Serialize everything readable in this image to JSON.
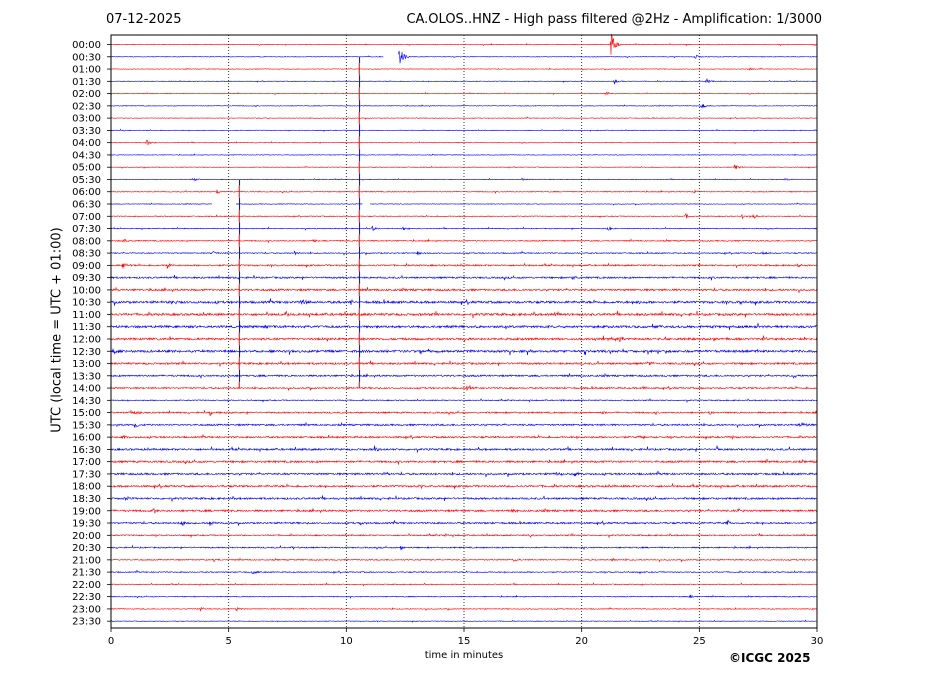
{
  "header": {
    "date": "07-12-2025",
    "title": "CA.OLOS..HNZ - High pass filtered @2Hz - Amplification: 1/3000"
  },
  "copyright": "©ICGC 2025",
  "colors": {
    "odd_row": "#ff0000",
    "even_row": "#0000ff",
    "grid": "#000000"
  },
  "chart_data": {
    "type": "line",
    "title": "CA.OLOS..HNZ - High pass filtered @2Hz - Amplification: 1/3000",
    "xlabel": "time in minutes",
    "ylabel": "UTC (local time = UTC + 01:00)",
    "xlim": [
      0,
      30
    ],
    "x_ticks": [
      0,
      5,
      10,
      15,
      20,
      25,
      30
    ],
    "grid": {
      "vertical_dotted": [
        5,
        10,
        15,
        20,
        25
      ]
    },
    "rows": [
      "00:00",
      "00:30",
      "01:00",
      "01:30",
      "02:00",
      "02:30",
      "03:00",
      "03:30",
      "04:00",
      "04:30",
      "05:00",
      "05:30",
      "06:00",
      "06:30",
      "07:00",
      "07:30",
      "08:00",
      "08:30",
      "09:00",
      "09:30",
      "10:00",
      "10:30",
      "11:00",
      "11:30",
      "12:00",
      "12:30",
      "13:00",
      "13:30",
      "14:00",
      "14:30",
      "15:00",
      "15:30",
      "16:00",
      "16:30",
      "17:00",
      "17:30",
      "18:00",
      "18:30",
      "19:00",
      "19:30",
      "20:00",
      "20:30",
      "21:00",
      "21:30",
      "22:00",
      "22:30",
      "23:00",
      "23:30"
    ],
    "row_colors": [
      "red",
      "blue"
    ],
    "row_noise": [
      0.3,
      0.3,
      0.3,
      0.3,
      0.3,
      0.3,
      0.3,
      0.3,
      0.3,
      0.3,
      0.3,
      0.3,
      0.4,
      0.3,
      0.4,
      0.4,
      0.5,
      0.5,
      0.7,
      0.8,
      0.9,
      1.1,
      1.1,
      1.1,
      1.0,
      1.1,
      0.9,
      0.8,
      0.7,
      0.5,
      0.7,
      0.8,
      0.8,
      0.9,
      0.9,
      0.9,
      0.9,
      0.9,
      0.9,
      0.8,
      0.6,
      0.6,
      0.5,
      0.5,
      0.4,
      0.4,
      0.4,
      0.3
    ],
    "events": [
      {
        "row": 0,
        "t": 21.25,
        "amp": 3.0
      },
      {
        "row": 1,
        "t": 12.25,
        "amp": 2.6
      },
      {
        "row": 1,
        "t": 24.8,
        "amp": 0.5
      },
      {
        "row": 2,
        "t": 27.1,
        "amp": 0.4
      },
      {
        "row": 3,
        "t": 21.4,
        "amp": 0.7
      },
      {
        "row": 3,
        "t": 25.3,
        "amp": 0.6
      },
      {
        "row": 4,
        "t": 21.0,
        "amp": 0.5
      },
      {
        "row": 5,
        "t": 25.1,
        "amp": 0.7
      },
      {
        "row": 7,
        "t": 0.4,
        "amp": 0.3
      },
      {
        "row": 8,
        "t": 1.5,
        "amp": 0.8
      },
      {
        "row": 10,
        "t": 26.5,
        "amp": 0.7
      },
      {
        "row": 11,
        "t": 3.5,
        "amp": 0.5
      },
      {
        "row": 11,
        "t": 17.4,
        "amp": 0.5
      },
      {
        "row": 11,
        "t": 28.6,
        "amp": 0.4
      },
      {
        "row": 12,
        "t": 4.5,
        "amp": 0.5
      },
      {
        "row": 12,
        "t": 24.8,
        "amp": 0.4
      },
      {
        "row": 14,
        "t": 24.4,
        "amp": 0.6
      },
      {
        "row": 14,
        "t": 26.8,
        "amp": 0.5
      },
      {
        "row": 14,
        "t": 27.3,
        "amp": 0.5
      },
      {
        "row": 15,
        "t": 11.1,
        "amp": 0.6
      },
      {
        "row": 15,
        "t": 12.4,
        "amp": 0.5
      },
      {
        "row": 15,
        "t": 21.1,
        "amp": 0.5
      },
      {
        "row": 16,
        "t": 0.5,
        "amp": 0.5
      },
      {
        "row": 16,
        "t": 8.6,
        "amp": 0.4
      },
      {
        "row": 17,
        "t": 4.3,
        "amp": 0.5
      },
      {
        "row": 17,
        "t": 7.8,
        "amp": 0.5
      },
      {
        "row": 17,
        "t": 13.0,
        "amp": 0.5
      },
      {
        "row": 17,
        "t": 27.7,
        "amp": 0.6
      },
      {
        "row": 18,
        "t": 0.5,
        "amp": 0.9
      },
      {
        "row": 18,
        "t": 2.4,
        "amp": 0.6
      },
      {
        "row": 18,
        "t": 29.2,
        "amp": 0.5
      },
      {
        "row": 19,
        "t": 19.6,
        "amp": 0.5
      },
      {
        "row": 20,
        "t": 0.2,
        "amp": 0.5
      },
      {
        "row": 21,
        "t": 2.6,
        "amp": 0.7
      },
      {
        "row": 21,
        "t": 8.1,
        "amp": 0.7
      },
      {
        "row": 21,
        "t": 10.2,
        "amp": 0.7
      },
      {
        "row": 21,
        "t": 22.3,
        "amp": 0.7
      },
      {
        "row": 21,
        "t": 26.7,
        "amp": 0.6
      },
      {
        "row": 22,
        "t": 7.4,
        "amp": 0.6
      },
      {
        "row": 22,
        "t": 18.8,
        "amp": 0.6
      },
      {
        "row": 22,
        "t": 30.0,
        "amp": 0.6
      },
      {
        "row": 23,
        "t": 6.5,
        "amp": 0.5
      },
      {
        "row": 24,
        "t": 15.0,
        "amp": 0.6
      },
      {
        "row": 24,
        "t": 21.6,
        "amp": 0.5
      },
      {
        "row": 24,
        "t": 27.7,
        "amp": 0.5
      },
      {
        "row": 25,
        "t": 0.1,
        "amp": 0.7
      },
      {
        "row": 25,
        "t": 17.7,
        "amp": 0.6
      },
      {
        "row": 25,
        "t": 30.0,
        "amp": 0.7
      },
      {
        "row": 26,
        "t": 22.8,
        "amp": 0.5
      },
      {
        "row": 27,
        "t": 29.0,
        "amp": 0.4
      },
      {
        "row": 28,
        "t": 15.1,
        "amp": 0.6
      },
      {
        "row": 28,
        "t": 22.6,
        "amp": 0.4
      },
      {
        "row": 29,
        "t": 19.1,
        "amp": 0.4
      },
      {
        "row": 30,
        "t": 1.0,
        "amp": 0.7
      },
      {
        "row": 30,
        "t": 4.2,
        "amp": 0.6
      },
      {
        "row": 30,
        "t": 20.9,
        "amp": 0.5
      },
      {
        "row": 30,
        "t": 25.4,
        "amp": 0.6
      },
      {
        "row": 31,
        "t": 1.0,
        "amp": 0.5
      },
      {
        "row": 31,
        "t": 29.3,
        "amp": 0.7
      },
      {
        "row": 32,
        "t": 0.5,
        "amp": 0.5
      },
      {
        "row": 32,
        "t": 22.4,
        "amp": 0.5
      },
      {
        "row": 32,
        "t": 26.4,
        "amp": 0.5
      },
      {
        "row": 33,
        "t": 11.2,
        "amp": 0.8
      },
      {
        "row": 33,
        "t": 25.7,
        "amp": 0.5
      },
      {
        "row": 35,
        "t": 11.6,
        "amp": 0.5
      },
      {
        "row": 35,
        "t": 18.8,
        "amp": 0.5
      },
      {
        "row": 35,
        "t": 19.7,
        "amp": 0.5
      },
      {
        "row": 36,
        "t": 12.9,
        "amp": 0.5
      },
      {
        "row": 37,
        "t": 0.6,
        "amp": 0.6
      },
      {
        "row": 37,
        "t": 9.6,
        "amp": 0.5
      },
      {
        "row": 38,
        "t": 1.8,
        "amp": 0.5
      },
      {
        "row": 38,
        "t": 17.0,
        "amp": 0.5
      },
      {
        "row": 38,
        "t": 26.6,
        "amp": 0.6
      },
      {
        "row": 39,
        "t": 3.0,
        "amp": 0.9
      },
      {
        "row": 39,
        "t": 4.2,
        "amp": 0.6
      },
      {
        "row": 39,
        "t": 10.6,
        "amp": 0.5
      },
      {
        "row": 39,
        "t": 26.2,
        "amp": 0.6
      },
      {
        "row": 40,
        "t": 14.2,
        "amp": 0.5
      },
      {
        "row": 40,
        "t": 17.8,
        "amp": 0.5
      },
      {
        "row": 41,
        "t": 7.7,
        "amp": 0.5
      },
      {
        "row": 41,
        "t": 12.3,
        "amp": 0.5
      },
      {
        "row": 42,
        "t": 4.3,
        "amp": 0.6
      },
      {
        "row": 42,
        "t": 17.1,
        "amp": 0.5
      },
      {
        "row": 42,
        "t": 21.3,
        "amp": 0.6
      },
      {
        "row": 43,
        "t": 6.0,
        "amp": 0.5
      },
      {
        "row": 45,
        "t": 24.6,
        "amp": 0.5
      },
      {
        "row": 46,
        "t": 3.8,
        "amp": 0.5
      },
      {
        "row": 46,
        "t": 5.3,
        "amp": 0.5
      }
    ],
    "long_spikes": [
      {
        "t": 5.45,
        "start": "05:30",
        "end": "14:00"
      },
      {
        "t": 10.55,
        "start": "00:30",
        "end": "14:00"
      }
    ],
    "gaps": [
      {
        "row": 1,
        "t_start": 11.6,
        "t_end": 12.2
      },
      {
        "row": 13,
        "t_start": 4.3,
        "t_end": 5.3
      },
      {
        "row": 13,
        "t_start": 10.7,
        "t_end": 11.0
      }
    ]
  }
}
